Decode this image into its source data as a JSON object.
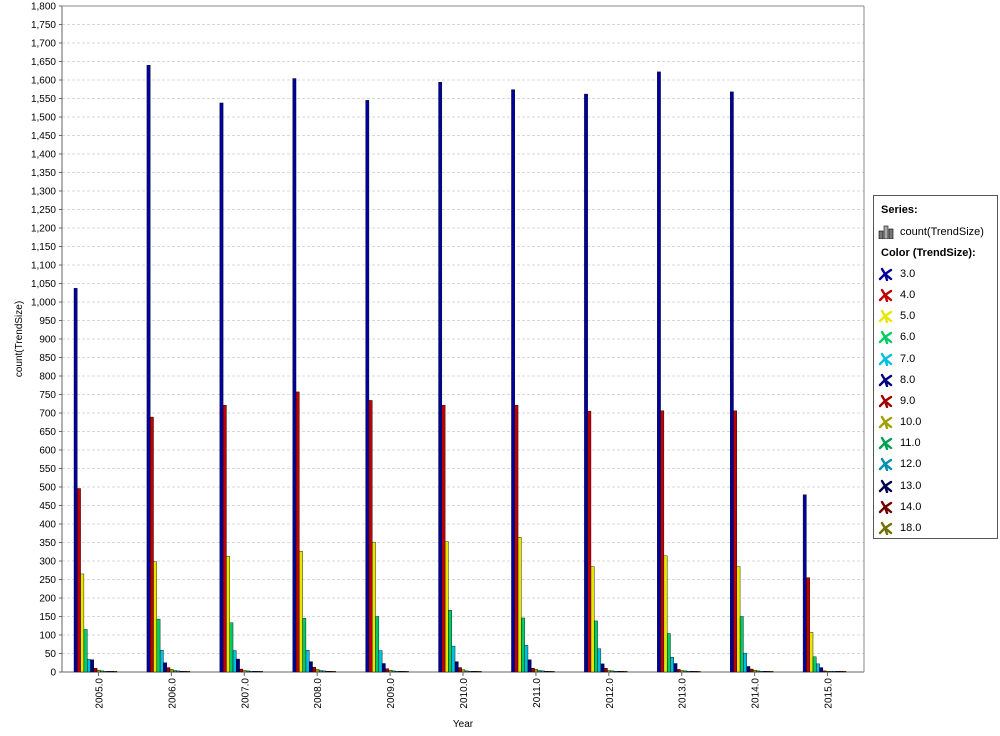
{
  "chart_data": {
    "type": "bar",
    "xlabel": "Year",
    "ylabel": "count(TrendSize)",
    "ylim": [
      0,
      1800
    ],
    "ytick_step": 50,
    "grid": true,
    "legend_position": "right",
    "categories": [
      "2005.0",
      "2006.0",
      "2007.0",
      "2008.0",
      "2009.0",
      "2010.0",
      "2011.0",
      "2012.0",
      "2013.0",
      "2014.0",
      "2015.0"
    ],
    "series": [
      {
        "name": "3.0",
        "color": "#0000a0",
        "values": [
          1037,
          1640,
          1538,
          1604,
          1545,
          1594,
          1574,
          1562,
          1622,
          1568,
          479
        ]
      },
      {
        "name": "4.0",
        "color": "#c00000",
        "values": [
          496,
          689,
          721,
          757,
          734,
          721,
          721,
          705,
          706,
          706,
          255
        ]
      },
      {
        "name": "5.0",
        "color": "#e6e600",
        "values": [
          265,
          298,
          313,
          326,
          351,
          352,
          364,
          285,
          314,
          285,
          107
        ]
      },
      {
        "name": "6.0",
        "color": "#00cc66",
        "values": [
          115,
          143,
          133,
          145,
          150,
          167,
          146,
          138,
          104,
          150,
          41
        ]
      },
      {
        "name": "7.0",
        "color": "#00bfe0",
        "values": [
          34,
          59,
          58,
          59,
          58,
          70,
          72,
          63,
          40,
          51,
          22
        ]
      },
      {
        "name": "8.0",
        "color": "#000080",
        "values": [
          33,
          25,
          35,
          28,
          23,
          28,
          33,
          22,
          23,
          15,
          12
        ]
      },
      {
        "name": "9.0",
        "color": "#a00000",
        "values": [
          10,
          12,
          8,
          13,
          9,
          12,
          10,
          10,
          7,
          8,
          3
        ]
      },
      {
        "name": "10.0",
        "color": "#a0a000",
        "values": [
          5,
          7,
          4,
          7,
          5,
          6,
          7,
          4,
          4,
          5,
          2
        ]
      },
      {
        "name": "11.0",
        "color": "#00a050",
        "values": [
          3,
          4,
          3,
          4,
          3,
          3,
          4,
          3,
          3,
          3,
          1
        ]
      },
      {
        "name": "12.0",
        "color": "#0090b0",
        "values": [
          2,
          3,
          2,
          3,
          2,
          2,
          3,
          2,
          2,
          2,
          1
        ]
      },
      {
        "name": "13.0",
        "color": "#000050",
        "values": [
          2,
          2,
          2,
          2,
          2,
          2,
          2,
          2,
          2,
          2,
          1
        ]
      },
      {
        "name": "14.0",
        "color": "#700000",
        "values": [
          2,
          2,
          2,
          2,
          2,
          2,
          2,
          2,
          2,
          2,
          1
        ]
      },
      {
        "name": "18.0",
        "color": "#707000",
        "values": [
          1,
          1,
          1,
          1,
          1,
          1,
          1,
          1,
          1,
          1,
          1
        ]
      }
    ]
  },
  "legend": {
    "series_heading": "Series:",
    "series_item": "count(TrendSize)",
    "color_heading": "Color (TrendSize):"
  }
}
